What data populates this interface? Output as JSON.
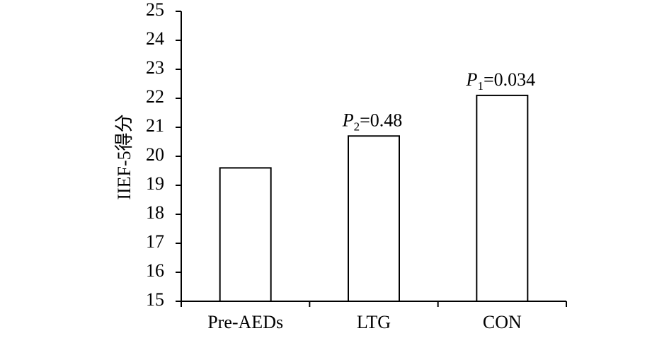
{
  "chart_data": {
    "type": "bar",
    "ylabel": "IIEF-5得分",
    "xlabel": "",
    "title": "",
    "ylim": [
      15,
      25
    ],
    "yticks": [
      15,
      16,
      17,
      18,
      19,
      20,
      21,
      22,
      23,
      24,
      25
    ],
    "categories": [
      "Pre-AEDs",
      "LTG",
      "CON"
    ],
    "values": [
      19.6,
      20.7,
      22.1
    ],
    "bar_fill": "#ffffff",
    "bar_stroke": "#000000",
    "grid": false,
    "legend": "none",
    "annotations": [
      {
        "category": "Pre-AEDs",
        "italic": "",
        "sub": "",
        "rest": ""
      },
      {
        "category": "LTG",
        "italic": "P",
        "sub": "2",
        "rest": "=0.48"
      },
      {
        "category": "CON",
        "italic": "P",
        "sub": "1",
        "rest": "=0.034"
      }
    ]
  }
}
